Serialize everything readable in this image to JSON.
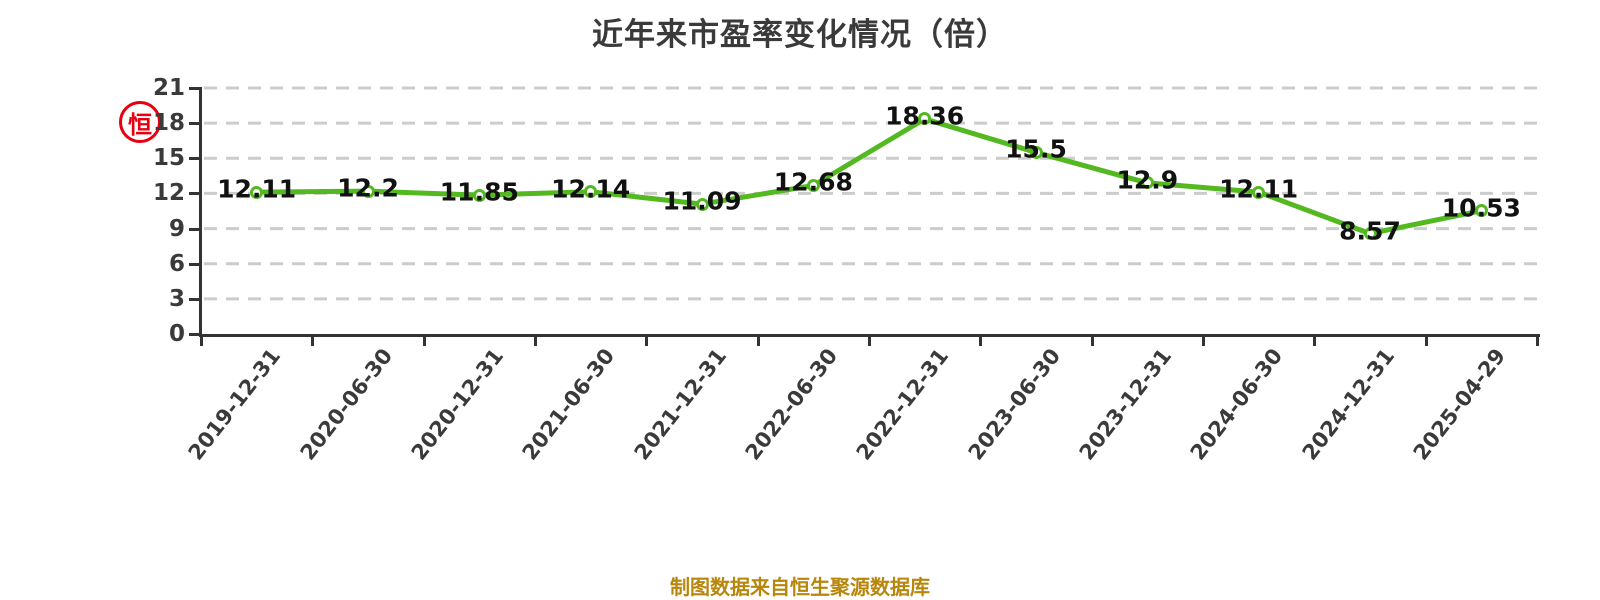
{
  "header": {
    "title": "近年来市盈率变化情况（倍）",
    "title_color": "#3a3a3a"
  },
  "watermark": {
    "glyph": "恒",
    "color": "#e60012"
  },
  "footer": {
    "text": "制图数据来自恒生聚源数据库",
    "color": "#b8860b"
  },
  "chart_data": {
    "type": "line",
    "title": "近年来市盈率变化情况（倍）",
    "categories": [
      "2019-12-31",
      "2020-06-30",
      "2020-12-31",
      "2021-06-30",
      "2021-12-31",
      "2022-06-30",
      "2022-12-31",
      "2023-06-30",
      "2023-12-31",
      "2024-06-30",
      "2024-12-31",
      "2025-04-29"
    ],
    "values": [
      12.11,
      12.2,
      11.85,
      12.14,
      11.09,
      12.68,
      18.36,
      15.5,
      12.9,
      12.11,
      8.57,
      10.53
    ],
    "value_labels": [
      "12.11",
      "12.2",
      "11.85",
      "12.14",
      "11.09",
      "12.68",
      "18.36",
      "15.5",
      "12.9",
      "12.11",
      "8.57",
      "10.53"
    ],
    "ylim": [
      0,
      21
    ],
    "yticks": [
      0,
      3,
      6,
      9,
      12,
      15,
      18,
      21
    ],
    "xlabel": "",
    "ylabel": "",
    "legend": "none",
    "grid": {
      "horizontal": true,
      "style": "dashed"
    },
    "x_label_rotation_deg": 52,
    "colors": {
      "line": "#54b821",
      "marker_fill": "#ffffff",
      "point_label": "#111111",
      "axis": "#333333",
      "grid": "#cccccc",
      "tick_label": "#3a3a3a"
    }
  }
}
